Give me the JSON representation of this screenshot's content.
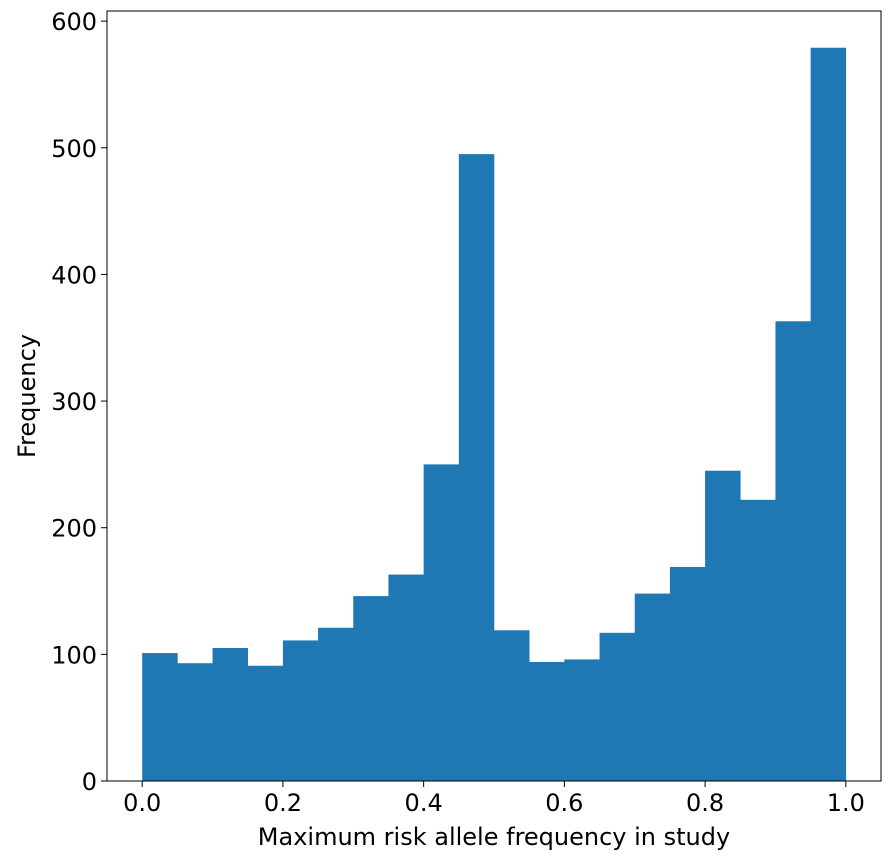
{
  "chart_data": {
    "type": "bar",
    "subtype": "histogram",
    "bin_edges": [
      0.0,
      0.05,
      0.1,
      0.15,
      0.2,
      0.25,
      0.3,
      0.35,
      0.4,
      0.45,
      0.5,
      0.55,
      0.6,
      0.65,
      0.7,
      0.75,
      0.8,
      0.85,
      0.9,
      0.95,
      1.0
    ],
    "values": [
      101,
      93,
      105,
      91,
      111,
      121,
      146,
      163,
      250,
      495,
      119,
      94,
      96,
      117,
      148,
      169,
      245,
      222,
      363,
      579
    ],
    "xlabel": "Maximum risk allele frequency in study",
    "ylabel": "Frequency",
    "xlim": [
      -0.05,
      1.05
    ],
    "ylim": [
      0,
      608
    ],
    "x_ticks": [
      0.0,
      0.2,
      0.4,
      0.6,
      0.8,
      1.0
    ],
    "x_tick_labels": [
      "0.0",
      "0.2",
      "0.4",
      "0.6",
      "0.8",
      "1.0"
    ],
    "y_ticks": [
      0,
      100,
      200,
      300,
      400,
      500,
      600
    ],
    "y_tick_labels": [
      "0",
      "100",
      "200",
      "300",
      "400",
      "500",
      "600"
    ],
    "bar_color": "#1f77b4",
    "grid": false,
    "legend": "none"
  }
}
